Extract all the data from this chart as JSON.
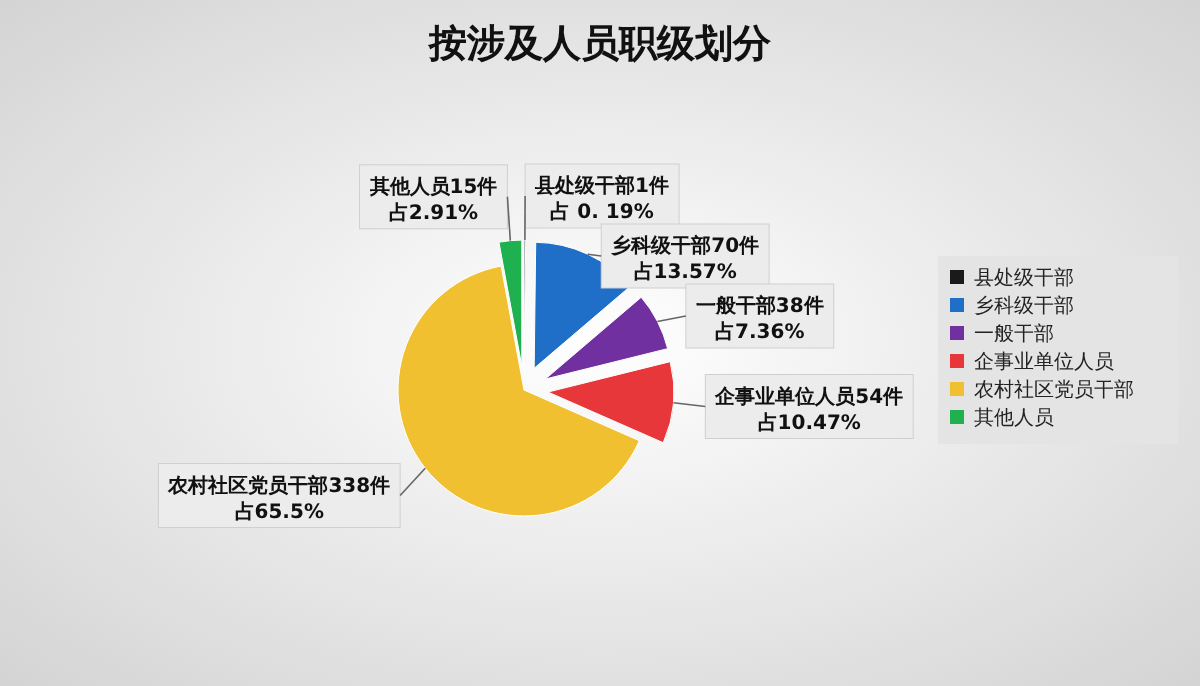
{
  "chart_data": {
    "type": "pie",
    "title": "按涉及人员职级划分",
    "categories": [
      "县处级干部",
      "乡科级干部",
      "一般干部",
      "企事业单位人员",
      "农村社区党员干部",
      "其他人员"
    ],
    "values": [
      1,
      70,
      38,
      54,
      338,
      15
    ],
    "colors": [
      "#1a1a1a",
      "#1f6fc8",
      "#7030a0",
      "#e8373a",
      "#f0c030",
      "#1fb050"
    ],
    "value_labels": [
      "县处级干部1件占 0. 19%",
      "乡科级干部70件占13.57%",
      "一般干部38件占7.36%",
      "企事业单位人员54件占10.47%",
      "农村社区党员干部338件占65.5%",
      "其他人员15件占2.91%"
    ],
    "legend": "right"
  }
}
